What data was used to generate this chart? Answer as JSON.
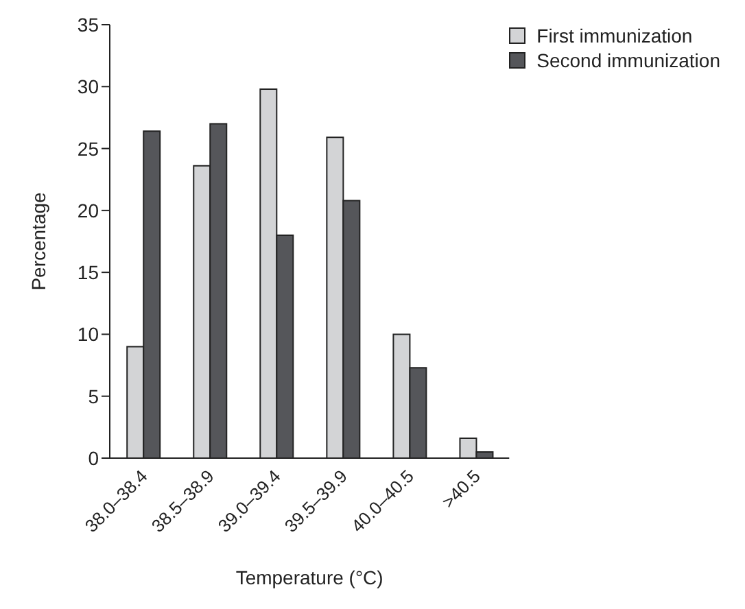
{
  "chart_data": {
    "type": "bar",
    "xlabel": "Temperature (°C)",
    "ylabel": "Percentage",
    "categories": [
      "38.0–38.4",
      "38.5–38.9",
      "39.0–39.4",
      "39.5–39.9",
      "40.0–40.5",
      ">40.5"
    ],
    "series": [
      {
        "name": "First immunization",
        "color": "#d3d4d6",
        "values": [
          9.0,
          23.6,
          29.8,
          25.9,
          10.0,
          1.6
        ]
      },
      {
        "name": "Second immunization",
        "color": "#55565a",
        "values": [
          26.4,
          27.0,
          18.0,
          20.8,
          7.3,
          0.5
        ]
      }
    ],
    "ylim": [
      0,
      35
    ],
    "yticks": [
      0,
      5,
      10,
      15,
      20,
      25,
      30,
      35
    ],
    "grid": false,
    "legend": "top right"
  }
}
